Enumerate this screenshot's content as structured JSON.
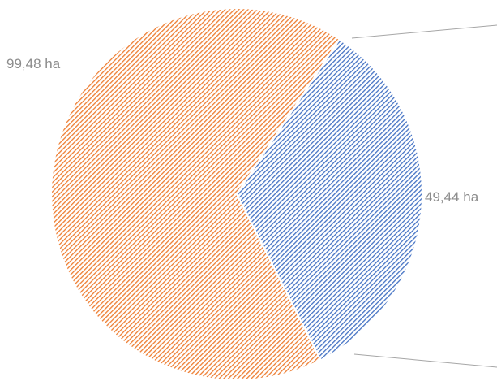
{
  "chart_data": {
    "type": "pie",
    "slices": [
      {
        "label": "49,44 ha",
        "value": 49.44,
        "color": "#4472c4"
      },
      {
        "label": "99,48 ha",
        "value": 99.48,
        "color": "#ed7d31"
      }
    ],
    "legend": "none",
    "background": "#ffffff"
  }
}
